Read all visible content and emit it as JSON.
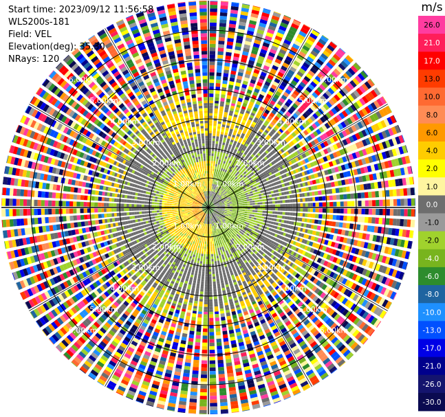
{
  "header": {
    "start_time": "Start time: 2023/09/12 11:56:58",
    "site": "WLS200s-181",
    "field": "Field: VEL",
    "elevation": "Elevation(deg): 35.30",
    "nrays": "NRays: 120"
  },
  "chart_data": {
    "type": "heatmap",
    "projection": "polar-ppi",
    "field": "VEL",
    "units": "m/s",
    "n_rays": 120,
    "elevation_deg": 35.3,
    "range_rings_km": [
      1.0,
      2.0,
      3.0,
      4.0,
      5.0,
      6.0
    ],
    "range_ring_labels": [
      "1.00km",
      "2.00km",
      "3.00km",
      "4.00km",
      "5.00km",
      "6.00km"
    ],
    "max_range_km": 7.0,
    "colorbar": {
      "unit": "m/s",
      "labels": [
        "26.0",
        "21.0",
        "17.0",
        "13.0",
        "10.0",
        "8.0",
        "6.0",
        "4.0",
        "2.0",
        "1.0",
        "0.0",
        "-1.0",
        "-2.0",
        "-4.0",
        "-6.0",
        "-8.0",
        "-10.0",
        "-13.0",
        "-17.0",
        "-21.0",
        "-26.0",
        "-30.0"
      ],
      "colors": [
        "#ff3ca0",
        "#ff1e5a",
        "#ff0000",
        "#ff3c00",
        "#ff6a32",
        "#ff8c55",
        "#ff9900",
        "#ffcc00",
        "#ffff00",
        "#fff5a0",
        "#6e6e6e",
        "#9a9a9a",
        "#a0d22d",
        "#78b41e",
        "#2d8c2d",
        "#1e64a0",
        "#1e90ff",
        "#0050ff",
        "#0000e6",
        "#00008c",
        "#14146e",
        "#0a0a50"
      ]
    },
    "velocity_structure": {
      "inner_gray_km": 0.5,
      "yellow_band_km": [
        0.6,
        1.55
      ],
      "olive_band_km": [
        0.8,
        1.25
      ],
      "gray_ring_km": [
        1.55,
        3.5
      ],
      "noise_start_km": 3.6
    }
  }
}
